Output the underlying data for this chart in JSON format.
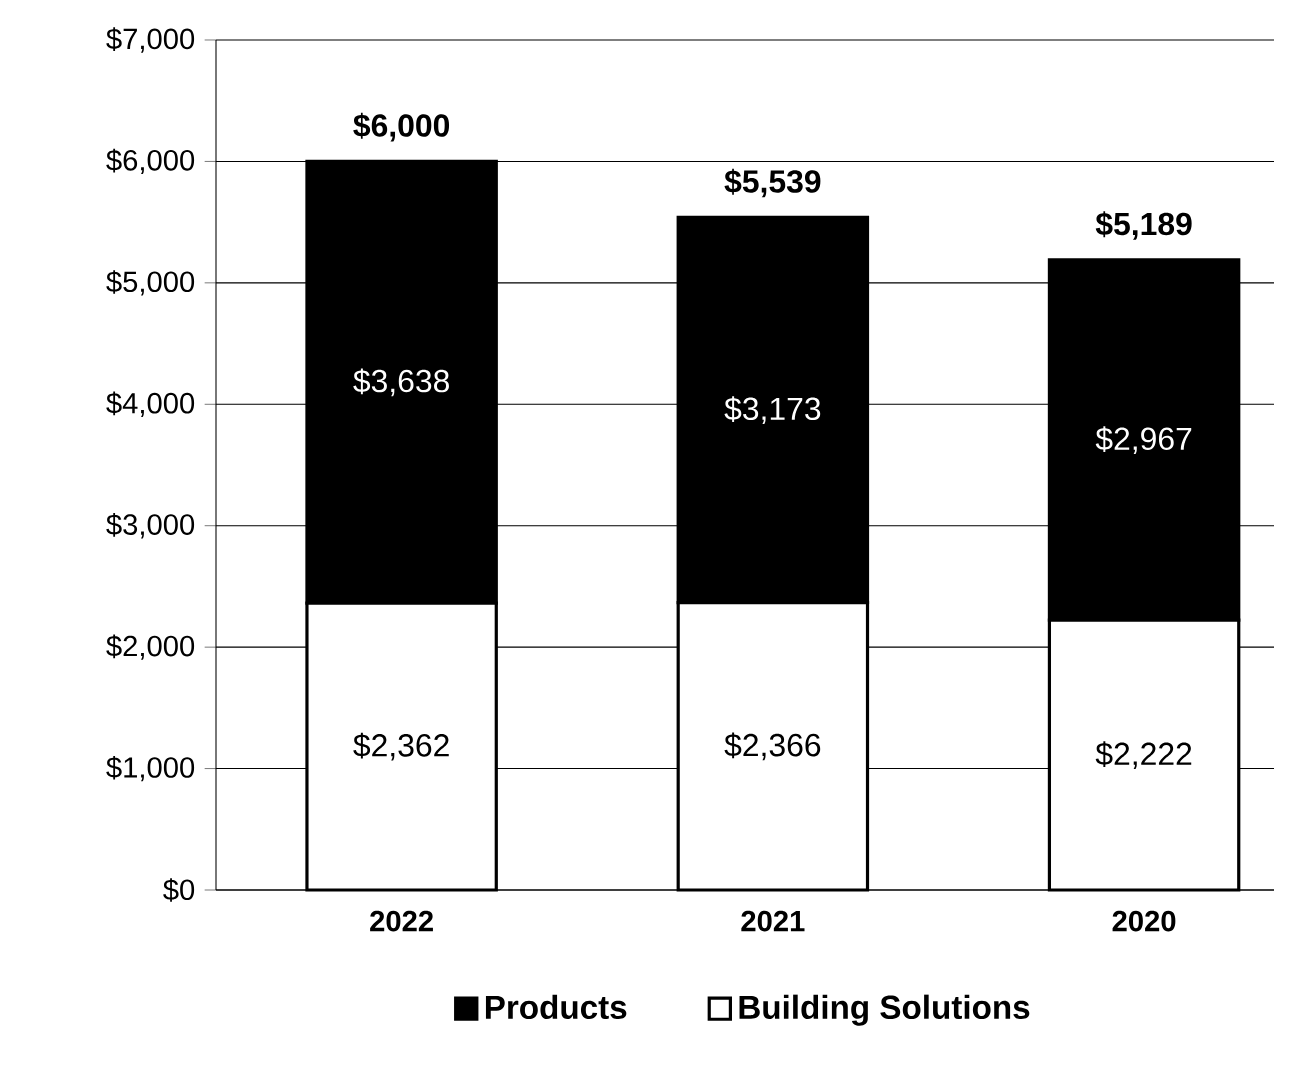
{
  "chart_data": {
    "type": "bar",
    "stacked": true,
    "categories": [
      "2022",
      "2021",
      "2020"
    ],
    "series": [
      {
        "name": "Building Solutions",
        "color": "#ffffff",
        "values": [
          2362,
          2366,
          2222
        ],
        "value_labels": [
          "$2,362",
          "$2,366",
          "$2,222"
        ]
      },
      {
        "name": "Products",
        "color": "#000000",
        "values": [
          3638,
          3173,
          2967
        ],
        "value_labels": [
          "$3,638",
          "$3,173",
          "$2,967"
        ]
      }
    ],
    "totals": [
      "$6,000",
      "$5,539",
      "$5,189"
    ],
    "ylim": [
      0,
      7000
    ],
    "yticks": [
      {
        "value": 0,
        "label": "$0"
      },
      {
        "value": 1000,
        "label": "$1,000"
      },
      {
        "value": 2000,
        "label": "$2,000"
      },
      {
        "value": 3000,
        "label": "$3,000"
      },
      {
        "value": 4000,
        "label": "$4,000"
      },
      {
        "value": 5000,
        "label": "$5,000"
      },
      {
        "value": 6000,
        "label": "$6,000"
      },
      {
        "value": 7000,
        "label": "$7,000"
      }
    ],
    "grid": "y",
    "legend": "bottom"
  }
}
